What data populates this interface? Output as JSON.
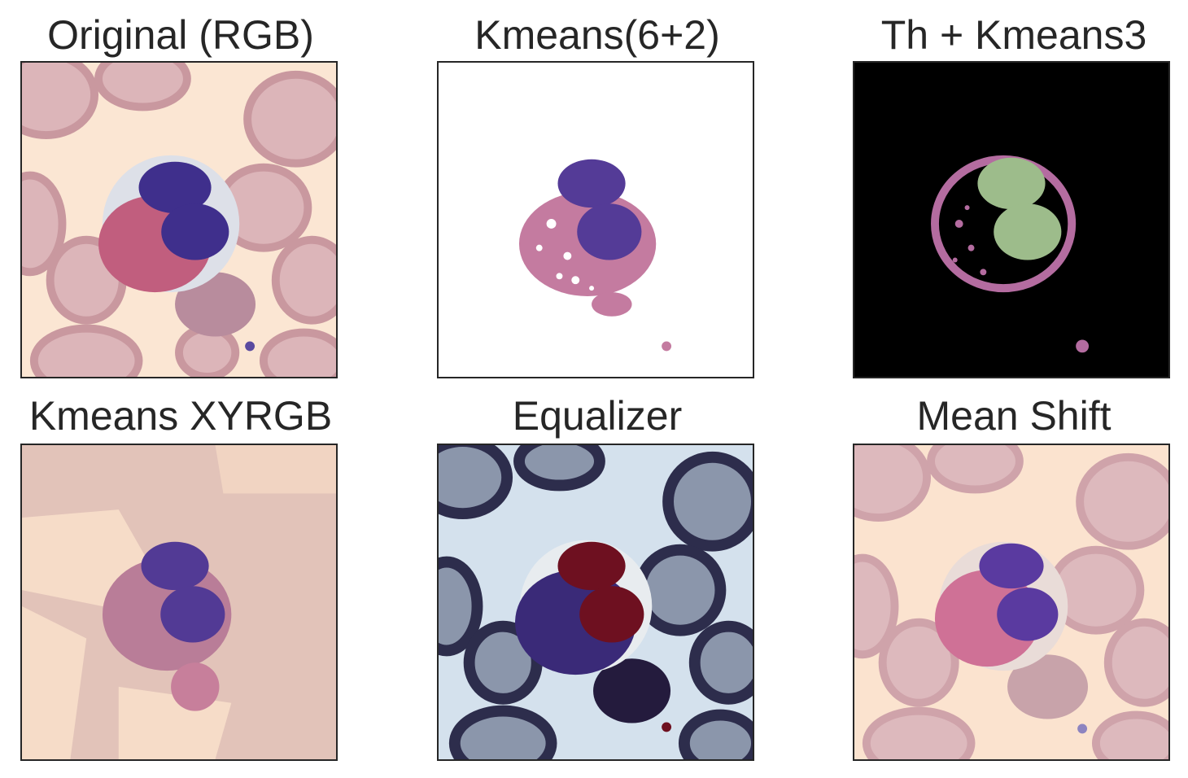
{
  "figure": {
    "panels": [
      {
        "title": "Original (RGB)"
      },
      {
        "title": "Kmeans(6+2)"
      },
      {
        "title": "Th + Kmeans3"
      },
      {
        "title": "Kmeans XYRGB"
      },
      {
        "title": "Equalizer"
      },
      {
        "title": "Mean Shift"
      }
    ]
  },
  "colors": {
    "background_cream": "#fbe6d3",
    "rbc_mauve": "#d9aeb4",
    "nucleus_purple": "#4f3892",
    "granule_pink": "#bf6f93",
    "nucleus_green": "#9dbc8b",
    "equalizer_bg": "#d4e1ed",
    "equalizer_cell": "#3a2a78",
    "equalizer_nucleus": "#6e1020"
  }
}
